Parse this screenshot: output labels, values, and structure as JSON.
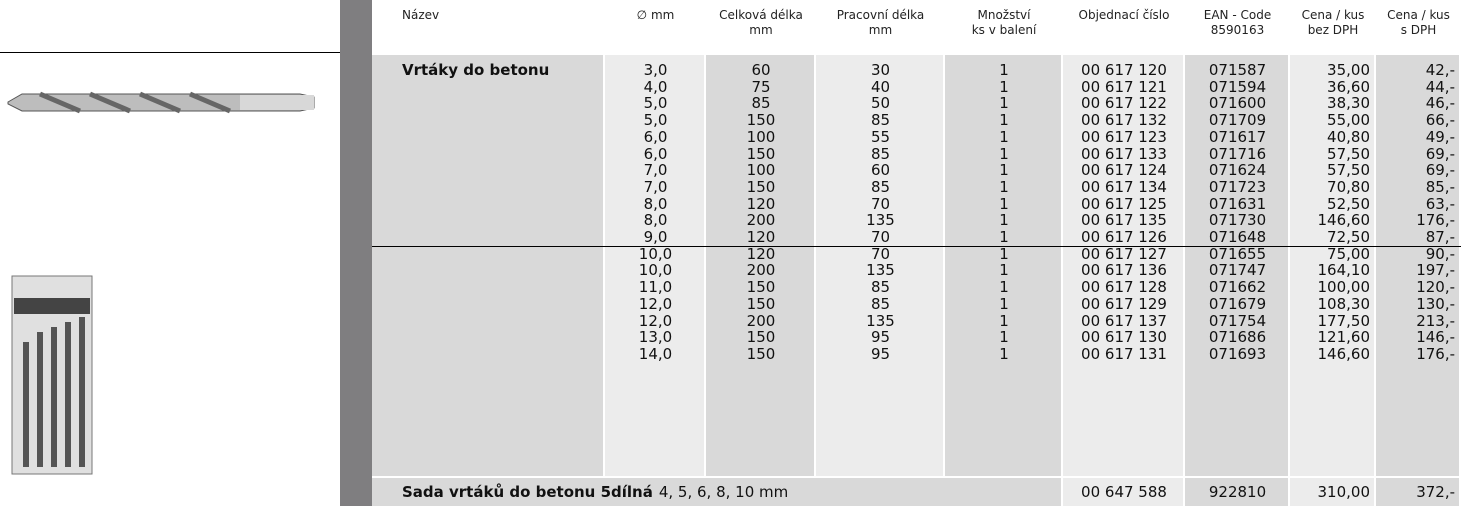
{
  "table": {
    "columns": [
      [
        "Název"
      ],
      [
        "∅ mm"
      ],
      [
        "Celková délka",
        "mm"
      ],
      [
        "Pracovní délka",
        "mm"
      ],
      [
        "Množství",
        "ks v balení"
      ],
      [
        "Objednací číslo"
      ],
      [
        "EAN - Code",
        "8590163"
      ],
      [
        "Cena / kus",
        "bez DPH"
      ],
      [
        "Cena / kus",
        "s DPH"
      ]
    ],
    "groups": [
      {
        "title": "Vrtáky do betonu",
        "rows": [
          [
            "3,0",
            "60",
            "30",
            "1",
            "00 617 120",
            "071587",
            "35,00",
            "42,-"
          ],
          [
            "4,0",
            "75",
            "40",
            "1",
            "00 617 121",
            "071594",
            "36,60",
            "44,-"
          ],
          [
            "5,0",
            "85",
            "50",
            "1",
            "00 617 122",
            "071600",
            "38,30",
            "46,-"
          ],
          [
            "5,0",
            "150",
            "85",
            "1",
            "00 617 132",
            "071709",
            "55,00",
            "66,-"
          ],
          [
            "6,0",
            "100",
            "55",
            "1",
            "00 617 123",
            "071617",
            "40,80",
            "49,-"
          ],
          [
            "6,0",
            "150",
            "85",
            "1",
            "00 617 133",
            "071716",
            "57,50",
            "69,-"
          ],
          [
            "7,0",
            "100",
            "60",
            "1",
            "00 617 124",
            "071624",
            "57,50",
            "69,-"
          ],
          [
            "7,0",
            "150",
            "85",
            "1",
            "00 617 134",
            "071723",
            "70,80",
            "85,-"
          ],
          [
            "8,0",
            "120",
            "70",
            "1",
            "00 617 125",
            "071631",
            "52,50",
            "63,-"
          ],
          [
            "8,0",
            "200",
            "135",
            "1",
            "00 617 135",
            "071730",
            "146,60",
            "176,-"
          ],
          [
            "9,0",
            "120",
            "70",
            "1",
            "00 617 126",
            "071648",
            "72,50",
            "87,-"
          ]
        ]
      },
      {
        "rows": [
          [
            "10,0",
            "120",
            "70",
            "1",
            "00 617 127",
            "071655",
            "75,00",
            "90,-"
          ],
          [
            "10,0",
            "200",
            "135",
            "1",
            "00 617 136",
            "071747",
            "164,10",
            "197,-"
          ],
          [
            "11,0",
            "150",
            "85",
            "1",
            "00 617 128",
            "071662",
            "100,00",
            "120,-"
          ],
          [
            "12,0",
            "150",
            "85",
            "1",
            "00 617 129",
            "071679",
            "108,30",
            "130,-"
          ],
          [
            "12,0",
            "200",
            "135",
            "1",
            "00 617 137",
            "071754",
            "177,50",
            "213,-"
          ],
          [
            "13,0",
            "150",
            "95",
            "1",
            "00 617 130",
            "071686",
            "121,60",
            "146,-"
          ],
          [
            "14,0",
            "150",
            "95",
            "1",
            "00 617 131",
            "071693",
            "146,60",
            "176,-"
          ]
        ]
      }
    ],
    "set": {
      "name": "Sada vrtáků do betonu 5dílná",
      "detail": "4, 5, 6, 8, 10 mm",
      "order": "00 647 588",
      "ean": "922810",
      "price": "310,00",
      "price_vat": "372,-"
    }
  }
}
